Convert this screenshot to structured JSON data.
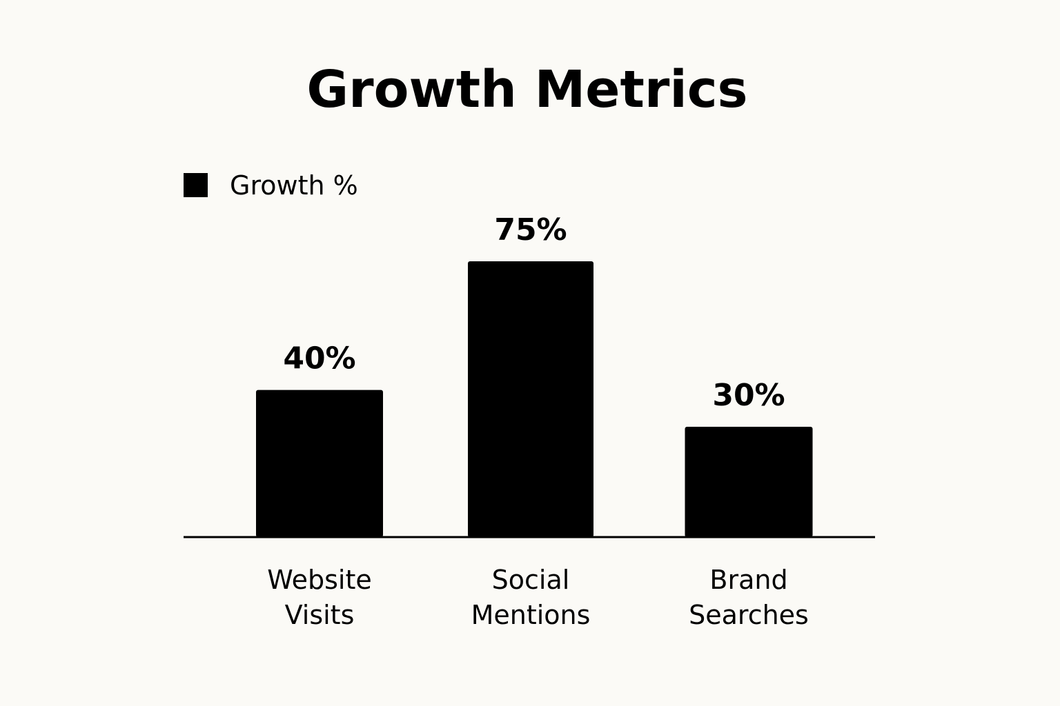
{
  "chart_data": {
    "type": "bar",
    "title": "Growth Metrics",
    "categories": [
      [
        "Website",
        "Visits"
      ],
      [
        "Social",
        "Mentions"
      ],
      [
        "Brand",
        "Searches"
      ]
    ],
    "series": [
      {
        "name": "Growth %",
        "values": [
          40,
          75,
          30
        ],
        "labels": [
          "40%",
          "75%",
          "30%"
        ]
      }
    ],
    "xlabel": "",
    "ylabel": "",
    "ylim": [
      0,
      100
    ],
    "grid": false,
    "legend": "top-left",
    "colors": {
      "bar": "#000000",
      "background": "#fbfaf6",
      "text": "#000000"
    }
  }
}
